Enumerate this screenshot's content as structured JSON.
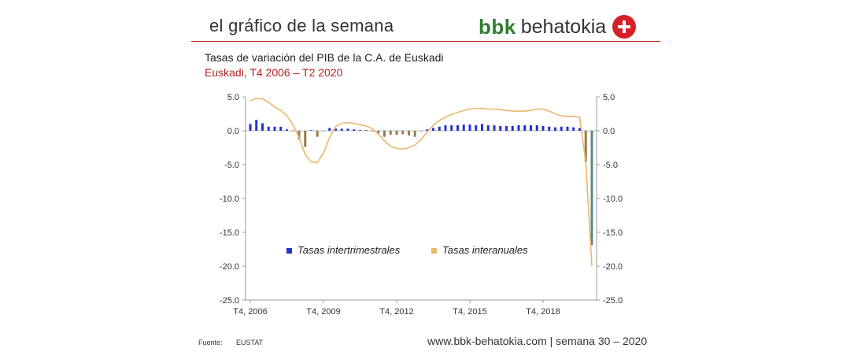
{
  "header": {
    "title": "el gráfico de la semana",
    "brand_bold": "bbk",
    "brand_name": "behatokia"
  },
  "footer": {
    "source_label": "Fuente:",
    "source": "EUSTAT",
    "site": "www.bbk-behatokia.com | semana 30 – 2020"
  },
  "colors": {
    "accent_red": "#b22222",
    "brand_green": "#2e7d32",
    "bar_blue": "#2233cc",
    "bar_negative": "#9a7b4f",
    "line_orange": "#e8b86d",
    "last_bar": "#5a8a8a"
  },
  "chart_data": {
    "type": "bar+line",
    "title": "Tasas de variación del PIB de la C.A. de Euskadi",
    "subtitle": "Euskadi, T4 2006 – T2 2020",
    "x_start": "T4 2006",
    "x_end": "T2 2020",
    "x_tick_labels": [
      "T4, 2006",
      "T4, 2009",
      "T4, 2012",
      "T4, 2015",
      "T4, 2018"
    ],
    "y_tick_labels": [
      "5.0",
      "0.0",
      "-5.0",
      "-10.0",
      "-15.0",
      "-20.0",
      "-25.0"
    ],
    "ylim": [
      -25,
      5
    ],
    "legend": [
      "Tasas intertrimestrales",
      "Tasas interanuales"
    ],
    "legend_position": "bottom-inside",
    "series": [
      {
        "name": "Tasas intertrimestrales",
        "kind": "bar",
        "values": [
          1.0,
          1.6,
          1.1,
          0.6,
          0.6,
          0.6,
          0.2,
          -0.1,
          -1.3,
          -2.4,
          0.1,
          -0.9,
          0.0,
          0.4,
          0.3,
          0.3,
          0.3,
          0.2,
          0.1,
          0.1,
          -0.1,
          -0.4,
          -0.9,
          -0.6,
          -0.6,
          -0.5,
          -0.7,
          -0.9,
          0.0,
          0.2,
          0.4,
          0.6,
          0.8,
          0.8,
          0.8,
          0.9,
          0.9,
          0.8,
          1.0,
          0.8,
          0.8,
          0.7,
          0.7,
          0.7,
          0.8,
          0.8,
          0.8,
          0.8,
          0.7,
          0.6,
          0.5,
          0.6,
          0.6,
          0.5,
          0.4,
          -4.6,
          -16.9
        ]
      },
      {
        "name": "Tasas interanuales",
        "kind": "line",
        "values": [
          4.4,
          4.8,
          4.7,
          4.2,
          3.5,
          3.0,
          2.2,
          0.9,
          -1.0,
          -3.5,
          -4.6,
          -4.7,
          -3.3,
          -1.0,
          0.6,
          1.1,
          1.2,
          1.1,
          0.9,
          0.7,
          0.3,
          -0.5,
          -1.5,
          -2.3,
          -2.6,
          -2.7,
          -2.5,
          -2.1,
          -1.3,
          -0.2,
          0.8,
          1.5,
          2.0,
          2.4,
          2.7,
          3.0,
          3.2,
          3.3,
          3.3,
          3.2,
          3.2,
          3.1,
          3.0,
          2.9,
          2.9,
          2.9,
          3.0,
          3.2,
          3.2,
          2.9,
          2.5,
          2.2,
          2.1,
          2.1,
          2.0,
          -4.7,
          -20.0
        ]
      }
    ]
  }
}
